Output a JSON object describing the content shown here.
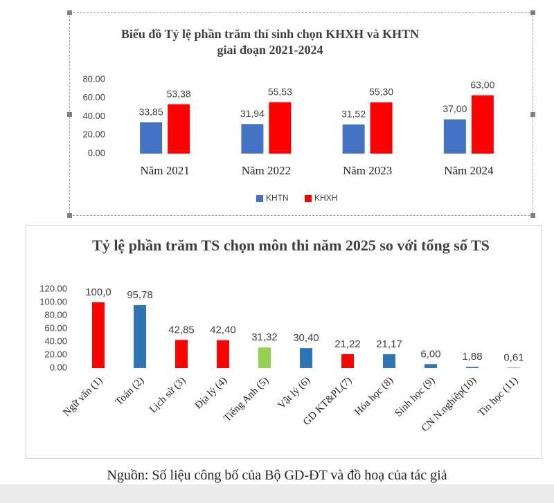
{
  "chart_data": [
    {
      "type": "bar",
      "title": "Biểu đồ Tỷ lệ phần trăm thí sinh chọn KHXH  và KHTN giai đoạn 2021-2024",
      "categories": [
        "Năm 2021",
        "Năm 2022",
        "Năm 2023",
        "Năm 2024"
      ],
      "series": [
        {
          "name": "KHTN",
          "color": "#4472c4",
          "values": [
            33.85,
            31.94,
            31.52,
            37.0
          ],
          "value_labels": [
            "33,85",
            "31,94",
            "31,52",
            "37,00"
          ]
        },
        {
          "name": "KHXH",
          "color": "#ff0000",
          "values": [
            53.38,
            55.53,
            55.3,
            63.0
          ],
          "value_labels": [
            "53,38",
            "55,53",
            "55,30",
            "63,00"
          ]
        }
      ],
      "ylim": [
        0,
        80
      ],
      "yticks": [
        {
          "value": 0,
          "label": "0.00"
        },
        {
          "value": 20,
          "label": "20.00"
        },
        {
          "value": 40,
          "label": "40.00"
        },
        {
          "value": 60,
          "label": "60.00"
        },
        {
          "value": 80,
          "label": "80.00"
        }
      ],
      "grid": false,
      "legend": "bottom"
    },
    {
      "type": "bar",
      "title": "Tỷ lệ phần trăm TS chọn môn thi năm 2025 so với tổng số TS",
      "categories": [
        "Ngữ văn (1)",
        "Toán (2)",
        "Lịch sử (3)",
        "Địa lý (4)",
        "Tiếng Anh (5)",
        "Vật lý (6)",
        "GD KT&PL(7)",
        "Hóa học (8)",
        "Sinh học (9)",
        "CN N.nghiệp(10)",
        "Tin học (11)"
      ],
      "values": [
        100,
        95.78,
        42.85,
        42.4,
        31.32,
        30.4,
        21.22,
        21.17,
        6.0,
        1.88,
        0.61
      ],
      "value_labels": [
        "100,0",
        "95,78",
        "42,85",
        "42,40",
        "31,32",
        "30,40",
        "21,22",
        "21,17",
        "6,00",
        "1,88",
        "0,61"
      ],
      "colors": [
        "#ff0000",
        "#2e75b6",
        "#ff0000",
        "#ff0000",
        "#92d050",
        "#2e75b6",
        "#ff0000",
        "#2e75b6",
        "#2e75b6",
        "#2e75b6",
        "#2e75b6"
      ],
      "ylim": [
        0,
        120
      ],
      "yticks": [
        {
          "value": 0,
          "label": "0.00"
        },
        {
          "value": 20,
          "label": "20.00"
        },
        {
          "value": 40,
          "label": "40.00"
        },
        {
          "value": 60,
          "label": "60.00"
        },
        {
          "value": 80,
          "label": "80.00"
        },
        {
          "value": 100,
          "label": "100.00"
        },
        {
          "value": 120,
          "label": "120.00"
        }
      ],
      "grid": false
    }
  ],
  "caption": "Nguồn: Số liệu công bố của Bộ GD-ĐT và đồ hoạ của tác giả"
}
